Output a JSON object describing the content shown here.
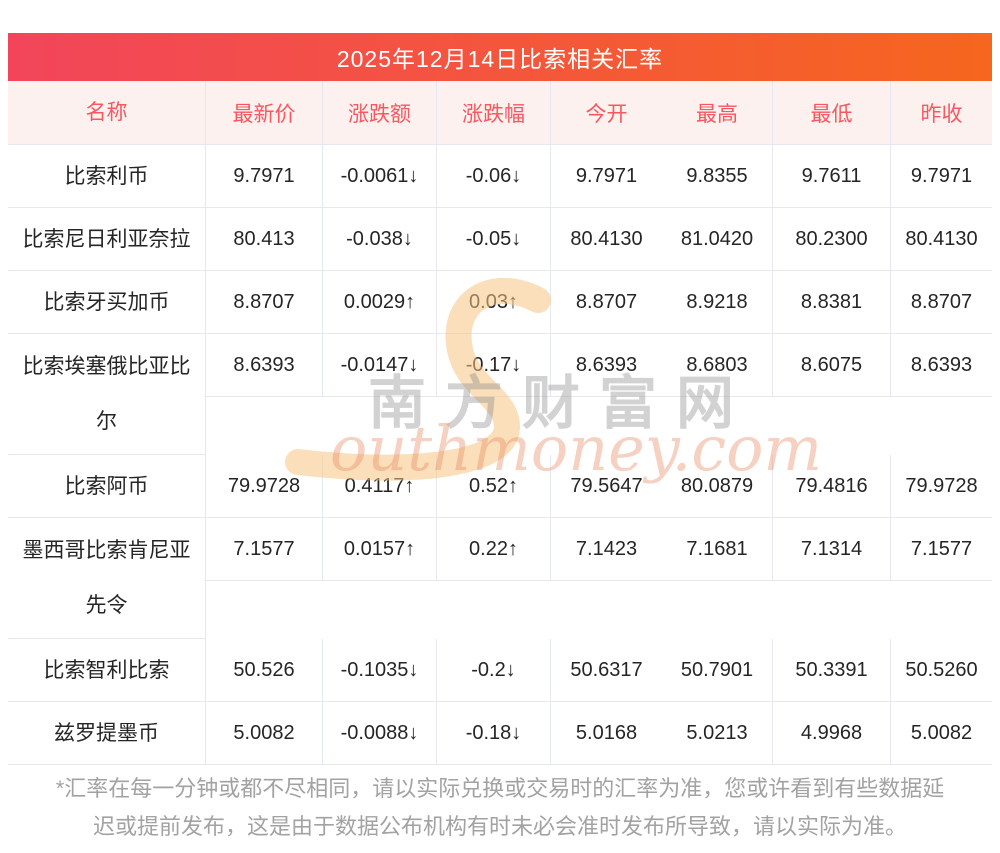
{
  "title": "2025年12月14日比索相关汇率",
  "table": {
    "columns": [
      "名称",
      "最新价",
      "涨跌额",
      "涨跌幅",
      "今开",
      "最高",
      "最低",
      "昨收"
    ],
    "rows": [
      {
        "name": "比索利币",
        "latest": "9.7971",
        "change": "-0.0061↓",
        "change_pct": "-0.06↓",
        "open": "9.7971",
        "high": "9.8355",
        "low": "9.7611",
        "prev_close": "9.7971",
        "trend": "down",
        "tall": false
      },
      {
        "name": "比索尼日利亚奈拉",
        "latest": "80.413",
        "change": "-0.038↓",
        "change_pct": "-0.05↓",
        "open": "80.4130",
        "high": "81.0420",
        "low": "80.2300",
        "prev_close": "80.4130",
        "trend": "down",
        "tall": false
      },
      {
        "name": "比索牙买加币",
        "latest": "8.8707",
        "change": "0.0029↑",
        "change_pct": "0.03↑",
        "open": "8.8707",
        "high": "8.9218",
        "low": "8.8381",
        "prev_close": "8.8707",
        "trend": "up",
        "tall": false
      },
      {
        "name": "比索埃塞俄比亚比尔",
        "latest": "8.6393",
        "change": "-0.0147↓",
        "change_pct": "-0.17↓",
        "open": "8.6393",
        "high": "8.6803",
        "low": "8.6075",
        "prev_close": "8.6393",
        "trend": "down",
        "tall": true
      },
      {
        "name": "比索阿币",
        "latest": "79.9728",
        "change": "0.4117↑",
        "change_pct": "0.52↑",
        "open": "79.5647",
        "high": "80.0879",
        "low": "79.4816",
        "prev_close": "79.9728",
        "trend": "up",
        "tall": false
      },
      {
        "name": "墨西哥比索肯尼亚先令",
        "latest": "7.1577",
        "change": "0.0157↑",
        "change_pct": "0.22↑",
        "open": "7.1423",
        "high": "7.1681",
        "low": "7.1314",
        "prev_close": "7.1577",
        "trend": "up",
        "tall": true
      },
      {
        "name": "比索智利比索",
        "latest": "50.526",
        "change": "-0.1035↓",
        "change_pct": "-0.2↓",
        "open": "50.6317",
        "high": "50.7901",
        "low": "50.3391",
        "prev_close": "50.5260",
        "trend": "down",
        "tall": false
      },
      {
        "name": "兹罗提墨币",
        "latest": "5.0082",
        "change": "-0.0088↓",
        "change_pct": "-0.18↓",
        "open": "5.0168",
        "high": "5.0213",
        "low": "4.9968",
        "prev_close": "5.0082",
        "trend": "down",
        "tall": false
      }
    ]
  },
  "watermark": {
    "cn": "南方财富网",
    "en_initial": "S",
    "en_text": "outhmoney.com"
  },
  "footnote_lines": [
    "*汇率在每一分钟或都不尽相同，请以实际兑换或交易时的汇率为准，您或许看到有些数据延",
    "迟或提前发布，这是由于数据公布机构有时未必会准时发布所导致，请以实际为准。"
  ],
  "colors": {
    "up": "#fe0000",
    "down": "#0a9d0a",
    "accent_left": "#f2455b",
    "accent_right": "#f6661e",
    "header_bg": "#fdf1f0",
    "header_text": "#f7575f",
    "line": "#e5e8f0",
    "watermark_swash": "#f6c581"
  }
}
